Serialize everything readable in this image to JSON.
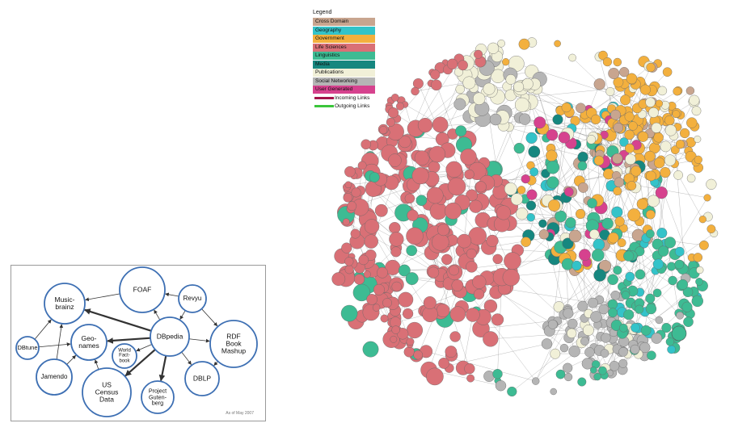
{
  "diagram_2007": {
    "nodes": [
      {
        "id": "foaf",
        "label": "FOAF"
      },
      {
        "id": "musicbrainz",
        "label": "Music-\nbrainz"
      },
      {
        "id": "revyu",
        "label": "Revyu"
      },
      {
        "id": "dbtune",
        "label": "DBtune"
      },
      {
        "id": "geonames",
        "label": "Geo-\nnames"
      },
      {
        "id": "dbpedia",
        "label": "DBpedia"
      },
      {
        "id": "rdfbook",
        "label": "RDF Book\nMashup"
      },
      {
        "id": "worldfactbook",
        "label": "World\nFact-\nbook"
      },
      {
        "id": "jamendo",
        "label": "Jamendo"
      },
      {
        "id": "uscensus",
        "label": "US\nCensus\nData"
      },
      {
        "id": "gutenberg",
        "label": "Project\nGuten-\nberg"
      },
      {
        "id": "dblp",
        "label": "DBLP"
      }
    ],
    "edges": [
      {
        "from": "dbpedia",
        "to": "musicbrainz",
        "weight": "thick"
      },
      {
        "from": "dbpedia",
        "to": "geonames",
        "weight": "thick"
      },
      {
        "from": "dbpedia",
        "to": "foaf",
        "weight": "thin"
      },
      {
        "from": "dbpedia",
        "to": "worldfactbook",
        "weight": "thin"
      },
      {
        "from": "dbpedia",
        "to": "uscensus",
        "weight": "thick"
      },
      {
        "from": "dbpedia",
        "to": "gutenberg",
        "weight": "thick"
      },
      {
        "from": "dbpedia",
        "to": "dblp",
        "weight": "thin"
      },
      {
        "from": "dbpedia",
        "to": "rdfbook",
        "weight": "thin"
      },
      {
        "from": "revyu",
        "to": "dbpedia",
        "weight": "thin"
      },
      {
        "from": "revyu",
        "to": "foaf",
        "weight": "thin"
      },
      {
        "from": "revyu",
        "to": "rdfbook",
        "weight": "thin"
      },
      {
        "from": "foaf",
        "to": "musicbrainz",
        "weight": "thin"
      },
      {
        "from": "dbtune",
        "to": "musicbrainz",
        "weight": "thin"
      },
      {
        "from": "dbtune",
        "to": "geonames",
        "weight": "thin"
      },
      {
        "from": "jamendo",
        "to": "musicbrainz",
        "weight": "thin"
      },
      {
        "from": "jamendo",
        "to": "geonames",
        "weight": "thin"
      },
      {
        "from": "uscensus",
        "to": "geonames",
        "weight": "thin"
      },
      {
        "from": "rdfbook",
        "to": "dblp",
        "weight": "thin"
      }
    ],
    "caption": "As of May 2007"
  },
  "cloud_legend": {
    "title": "Legend",
    "categories": [
      {
        "label": "Cross Domain",
        "color": "#c8a58f"
      },
      {
        "label": "Geography",
        "color": "#33c3c9"
      },
      {
        "label": "Government",
        "color": "#f3b03e"
      },
      {
        "label": "Life Sciences",
        "color": "#d97076"
      },
      {
        "label": "Linguistics",
        "color": "#3dbb93"
      },
      {
        "label": "Media",
        "color": "#16877f"
      },
      {
        "label": "Publications",
        "color": "#f1f0d8"
      },
      {
        "label": "Social Networking",
        "color": "#b5b5b5"
      },
      {
        "label": "User Generated",
        "color": "#d6428e"
      }
    ],
    "links": [
      {
        "label": "Incoming Links",
        "color": "#a3134a"
      },
      {
        "label": "Outgoing Links",
        "color": "#3bc53b"
      }
    ]
  }
}
